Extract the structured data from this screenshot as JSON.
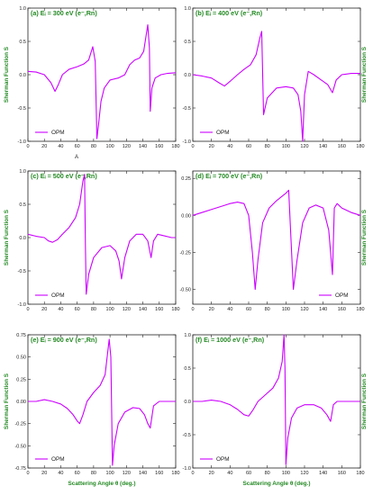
{
  "colors": {
    "curve": "#cc00ff",
    "label": "#228822",
    "axis": "#222222"
  },
  "y_axis_label": "Sherman Function S",
  "x_axis_label": "Scattering Angle θ (deg.)",
  "annotation": "A",
  "chart_data": [
    {
      "id": "a",
      "type": "line",
      "title": "(a) Eᵢ = 300 eV (e⁻,Rn)",
      "xlim": [
        0,
        180
      ],
      "ylim": [
        -1.0,
        1.0
      ],
      "xticks": [
        0,
        20,
        40,
        60,
        80,
        100,
        120,
        140,
        160,
        180
      ],
      "yticks": [
        -1.0,
        -0.5,
        0.0,
        0.5,
        1.0
      ],
      "ytick_labels": [
        "-1.0",
        "-0.5",
        "0.0",
        "0.5",
        "1.0"
      ],
      "ylabel_side": "left",
      "show_xlabel": false,
      "legend": "lower-left",
      "series": [
        {
          "name": "OPM",
          "x": [
            0,
            10,
            20,
            28,
            33,
            37,
            42,
            50,
            60,
            68,
            74,
            79,
            82,
            84,
            86,
            89,
            93,
            100,
            110,
            118,
            124,
            130,
            136,
            141,
            146,
            148,
            149,
            151,
            155,
            162,
            170,
            180
          ],
          "y": [
            0.05,
            0.04,
            0.0,
            -0.12,
            -0.25,
            -0.15,
            0.0,
            0.08,
            0.12,
            0.16,
            0.22,
            0.42,
            0.2,
            -0.96,
            -0.75,
            -0.4,
            -0.2,
            -0.08,
            -0.05,
            0.0,
            0.15,
            0.22,
            0.25,
            0.35,
            0.75,
            0.4,
            -0.55,
            -0.2,
            -0.05,
            0.0,
            0.02,
            0.03
          ]
        }
      ]
    },
    {
      "id": "b",
      "type": "line",
      "title": "(b) Eᵢ = 400 eV (e⁻,Rn)",
      "xlim": [
        0,
        180
      ],
      "ylim": [
        -1.0,
        1.0
      ],
      "xticks": [
        0,
        20,
        40,
        60,
        80,
        100,
        120,
        140,
        160,
        180
      ],
      "yticks": [
        -1.0,
        -0.5,
        0.0,
        0.5,
        1.0
      ],
      "ytick_labels": [
        "-1.0",
        "-0.5",
        "0.0",
        "0.5",
        "1.0"
      ],
      "ylabel_side": "right",
      "show_xlabel": false,
      "legend": "lower-left",
      "series": [
        {
          "name": "OPM",
          "x": [
            0,
            10,
            20,
            28,
            34,
            40,
            48,
            55,
            62,
            68,
            72,
            74,
            76,
            80,
            90,
            100,
            108,
            113,
            116,
            118,
            120,
            124,
            130,
            138,
            145,
            150,
            154,
            160,
            170,
            180
          ],
          "y": [
            0.0,
            -0.02,
            -0.05,
            -0.12,
            -0.17,
            -0.1,
            0.0,
            0.08,
            0.15,
            0.3,
            0.55,
            0.65,
            -0.6,
            -0.35,
            -0.2,
            -0.18,
            -0.2,
            -0.3,
            -0.55,
            -1.0,
            -0.3,
            0.05,
            0.0,
            -0.08,
            -0.15,
            -0.27,
            -0.08,
            0.0,
            0.02,
            0.02
          ]
        }
      ]
    },
    {
      "id": "c",
      "type": "line",
      "title": "(c) Eᵢ = 500 eV (e⁻,Rn)",
      "xlim": [
        0,
        180
      ],
      "ylim": [
        -1.0,
        1.0
      ],
      "xticks": [
        0,
        20,
        40,
        60,
        80,
        100,
        120,
        140,
        160,
        180
      ],
      "yticks": [
        -1.0,
        -0.5,
        0.0,
        0.5,
        1.0
      ],
      "ytick_labels": [
        "-1.0",
        "-0.5",
        "0.0",
        "0.5",
        "1.0"
      ],
      "ylabel_side": "left",
      "show_xlabel": false,
      "legend": "lower-left",
      "series": [
        {
          "name": "OPM",
          "x": [
            0,
            10,
            20,
            25,
            30,
            36,
            42,
            50,
            58,
            63,
            67,
            69,
            70,
            71,
            74,
            80,
            90,
            100,
            107,
            111,
            114,
            118,
            124,
            132,
            140,
            146,
            150,
            153,
            158,
            165,
            175,
            180
          ],
          "y": [
            0.05,
            0.02,
            0.0,
            -0.05,
            -0.07,
            -0.03,
            0.05,
            0.15,
            0.3,
            0.5,
            0.85,
            0.95,
            -0.1,
            -0.85,
            -0.55,
            -0.3,
            -0.15,
            -0.12,
            -0.2,
            -0.35,
            -0.62,
            -0.3,
            -0.05,
            0.05,
            0.05,
            -0.05,
            -0.3,
            -0.05,
            0.05,
            0.03,
            0.0,
            0.0
          ]
        }
      ]
    },
    {
      "id": "d",
      "type": "line",
      "title": "(d) Eᵢ = 700 eV (e⁻,Rn)",
      "xlim": [
        0,
        180
      ],
      "ylim": [
        -0.6,
        0.3
      ],
      "xticks": [
        0,
        20,
        40,
        60,
        80,
        100,
        120,
        140,
        160,
        180
      ],
      "yticks": [
        -0.5,
        -0.25,
        0.0,
        0.25
      ],
      "ytick_labels": [
        "-0.50",
        "-0.25",
        "0.00",
        "0.25"
      ],
      "ylabel_side": "right",
      "show_xlabel": false,
      "legend": "lower-right",
      "series": [
        {
          "name": "OPM",
          "x": [
            0,
            10,
            20,
            30,
            40,
            48,
            55,
            60,
            64,
            67,
            70,
            75,
            82,
            90,
            96,
            100,
            103,
            105,
            108,
            112,
            118,
            125,
            132,
            140,
            146,
            150,
            152,
            155,
            160,
            170,
            180
          ],
          "y": [
            0.0,
            0.02,
            0.04,
            0.06,
            0.08,
            0.09,
            0.08,
            0.0,
            -0.25,
            -0.5,
            -0.3,
            -0.05,
            0.05,
            0.1,
            0.13,
            0.15,
            0.17,
            -0.1,
            -0.5,
            -0.3,
            -0.05,
            0.05,
            0.07,
            0.05,
            -0.1,
            -0.4,
            0.05,
            0.08,
            0.05,
            0.02,
            0.0
          ]
        }
      ]
    },
    {
      "id": "e",
      "type": "line",
      "title": "(e) Eᵢ = 900 eV (e⁻,Rn)",
      "xlim": [
        0,
        180
      ],
      "ylim": [
        -0.75,
        0.75
      ],
      "xticks": [
        0,
        20,
        40,
        60,
        80,
        100,
        120,
        140,
        160,
        180
      ],
      "yticks": [
        -0.75,
        -0.5,
        -0.25,
        0.0,
        0.25,
        0.5,
        0.75
      ],
      "ytick_labels": [
        "-0.75",
        "-0.50",
        "-0.25",
        "0.00",
        "0.25",
        "0.50",
        "0.75"
      ],
      "ylabel_side": "left",
      "show_xlabel": true,
      "legend": "lower-left",
      "series": [
        {
          "name": "OPM",
          "x": [
            0,
            10,
            20,
            30,
            40,
            48,
            55,
            60,
            63,
            67,
            72,
            80,
            88,
            94,
            99,
            101,
            103,
            105,
            110,
            118,
            128,
            136,
            142,
            146,
            149,
            153,
            160,
            170,
            180
          ],
          "y": [
            0.0,
            0.0,
            0.02,
            0.0,
            -0.03,
            -0.08,
            -0.15,
            -0.22,
            -0.25,
            -0.15,
            0.0,
            0.1,
            0.18,
            0.3,
            0.7,
            0.5,
            -0.72,
            -0.5,
            -0.25,
            -0.12,
            -0.07,
            -0.08,
            -0.15,
            -0.25,
            -0.3,
            -0.05,
            0.0,
            0.0,
            0.0
          ]
        }
      ]
    },
    {
      "id": "f",
      "type": "line",
      "title": "(f) Eᵢ = 1000 eV (e⁻,Rn)",
      "xlim": [
        0,
        180
      ],
      "ylim": [
        -1.0,
        1.0
      ],
      "xticks": [
        0,
        20,
        40,
        60,
        80,
        100,
        120,
        140,
        160,
        180
      ],
      "yticks": [
        -1.0,
        -0.5,
        0.0,
        0.5,
        1.0
      ],
      "ytick_labels": [
        "-1.0",
        "-0.5",
        "0.0",
        "0.5",
        "1.0"
      ],
      "ylabel_side": "right",
      "show_xlabel": true,
      "legend": "lower-left",
      "series": [
        {
          "name": "OPM",
          "x": [
            0,
            10,
            20,
            30,
            40,
            48,
            55,
            60,
            65,
            70,
            78,
            86,
            92,
            96,
            98,
            99,
            100,
            102,
            106,
            112,
            120,
            130,
            138,
            144,
            148,
            151,
            155,
            162,
            170,
            180
          ],
          "y": [
            0.0,
            0.0,
            0.02,
            0.0,
            -0.05,
            -0.12,
            -0.2,
            -0.22,
            -0.12,
            0.0,
            0.1,
            0.2,
            0.35,
            0.6,
            1.0,
            0.5,
            -0.95,
            -0.55,
            -0.25,
            -0.1,
            -0.05,
            -0.05,
            -0.1,
            -0.2,
            -0.3,
            -0.05,
            0.0,
            0.0,
            0.0,
            0.0
          ]
        }
      ]
    }
  ]
}
